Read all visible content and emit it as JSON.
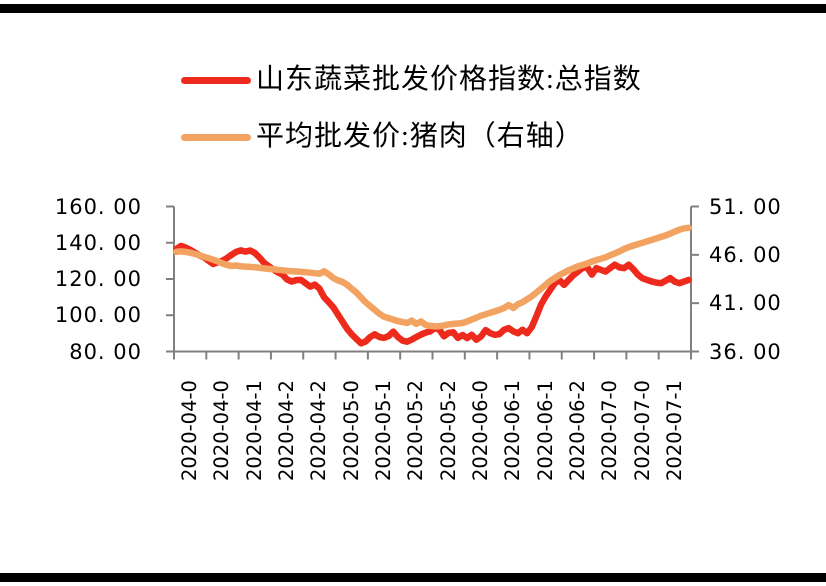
{
  "legend": {
    "items": [
      {
        "label": "山东蔬菜批发价格指数:总指数",
        "color": "#ED2A1C"
      },
      {
        "label": "平均批发价:猪肉（右轴）",
        "color": "#F3A361"
      }
    ]
  },
  "colors": {
    "axis": "#808080",
    "text": "#000000",
    "background": "#FFFFFF",
    "frame": "#000000",
    "series_red": "#ED2A1C",
    "series_orange": "#F3A361"
  },
  "chart_data": {
    "type": "line",
    "title": "",
    "grid": false,
    "legend_position": "top-left",
    "x_tick_labels": [
      "2020-04-0",
      "2020-04-0",
      "2020-04-1",
      "2020-04-2",
      "2020-04-2",
      "2020-05-0",
      "2020-05-1",
      "2020-05-2",
      "2020-05-2",
      "2020-06-0",
      "2020-06-1",
      "2020-06-1",
      "2020-06-2",
      "2020-07-0",
      "2020-07-0",
      "2020-07-1"
    ],
    "left_axis": {
      "min": 80,
      "max": 160,
      "ticks": [
        "160. 00",
        "140. 00",
        "120. 00",
        "100. 00",
        "80. 00"
      ]
    },
    "right_axis": {
      "min": 36,
      "max": 51,
      "ticks": [
        "51. 00",
        "46. 00",
        "41. 00",
        "36. 00"
      ]
    },
    "series": [
      {
        "name": "山东蔬菜批发价格指数:总指数",
        "axis": "left",
        "color": "#ED2A1C",
        "values": [
          136.5,
          138.2,
          137.4,
          136.1,
          134.6,
          133.0,
          131.9,
          130.1,
          128.3,
          129.2,
          130.1,
          131.6,
          133.4,
          135.0,
          135.8,
          135.1,
          135.7,
          134.4,
          131.9,
          129.0,
          127.1,
          125.3,
          123.7,
          122.4,
          119.7,
          118.6,
          119.4,
          119.5,
          117.7,
          115.8,
          116.9,
          114.7,
          110.0,
          107.3,
          104.4,
          100.4,
          96.5,
          92.5,
          89.5,
          87.0,
          84.5,
          85.5,
          88.0,
          89.5,
          88.0,
          87.5,
          88.5,
          91.0,
          88.0,
          86.0,
          85.4,
          86.5,
          88.0,
          89.3,
          90.4,
          91.1,
          92.9,
          92.1,
          88.4,
          90.3,
          90.6,
          87.5,
          89.1,
          87.4,
          89.2,
          86.5,
          88.3,
          91.8,
          90.1,
          89.2,
          89.6,
          92.0,
          92.9,
          91.1,
          90.1,
          92.0,
          90.1,
          93.4,
          99.5,
          105.8,
          110.3,
          114.0,
          117.7,
          119.4,
          116.8,
          119.5,
          122.1,
          124.1,
          126.0,
          126.6,
          122.4,
          126.0,
          125.0,
          124.1,
          126.0,
          127.9,
          126.4,
          126.0,
          127.9,
          125.4,
          122.4,
          120.4,
          119.5,
          118.6,
          118.0,
          117.7,
          119.0,
          120.5,
          118.5,
          117.7,
          118.6,
          119.5
        ]
      },
      {
        "name": "平均批发价:猪肉（右轴）",
        "axis": "right",
        "color": "#F3A361",
        "values": [
          46.3,
          46.35,
          46.3,
          46.22,
          46.1,
          45.95,
          45.8,
          45.65,
          45.5,
          45.32,
          45.1,
          44.95,
          44.85,
          44.9,
          44.8,
          44.78,
          44.75,
          44.72,
          44.66,
          44.6,
          44.55,
          44.5,
          44.45,
          44.4,
          44.35,
          44.3,
          44.28,
          44.25,
          44.2,
          44.15,
          44.1,
          44.05,
          44.3,
          44.0,
          43.6,
          43.35,
          43.2,
          42.9,
          42.5,
          42.1,
          41.6,
          41.1,
          40.7,
          40.3,
          39.9,
          39.6,
          39.45,
          39.3,
          39.15,
          39.05,
          38.95,
          39.2,
          38.85,
          39.1,
          38.75,
          38.65,
          38.6,
          38.62,
          38.7,
          38.8,
          38.85,
          38.9,
          38.95,
          39.1,
          39.3,
          39.5,
          39.7,
          39.85,
          40.0,
          40.15,
          40.3,
          40.5,
          40.8,
          40.5,
          40.9,
          41.1,
          41.4,
          41.7,
          42.1,
          42.5,
          42.9,
          43.3,
          43.6,
          43.9,
          44.15,
          44.4,
          44.6,
          44.8,
          44.95,
          45.1,
          45.3,
          45.45,
          45.6,
          45.75,
          45.95,
          46.15,
          46.35,
          46.6,
          46.8,
          46.95,
          47.1,
          47.25,
          47.4,
          47.55,
          47.7,
          47.85,
          48.0,
          48.2,
          48.4,
          48.6,
          48.75,
          48.8
        ]
      }
    ]
  }
}
